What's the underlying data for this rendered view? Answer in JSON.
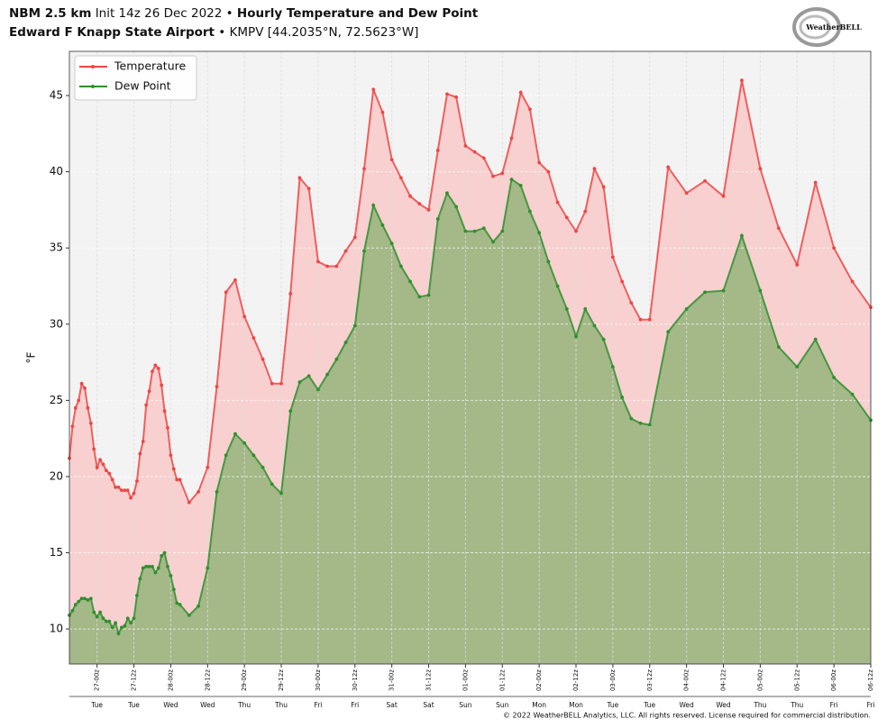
{
  "chart_data": {
    "type": "line",
    "title": {
      "model": "NBM 2.5 km",
      "init": "Init 14z 26 Dec 2022 •",
      "name": "Hourly Temperature and Dew Point"
    },
    "subtitle": {
      "station": "Edward F Knapp State Airport",
      "location": "• KMPV [44.2035°N, 72.5623°W]"
    },
    "y_label": "°F",
    "logo": "WeatherBELL",
    "copyright": "© 2022 WeatherBELL Analytics, LLC. All rights reserved. License required for commercial distribution.",
    "x": [
      15,
      16,
      17,
      18,
      19,
      20,
      21,
      22,
      23,
      24,
      25,
      26,
      27,
      28,
      29,
      30,
      31,
      32,
      33,
      34,
      35,
      36,
      37,
      38,
      39,
      40,
      41,
      42,
      43,
      44,
      45,
      46,
      47,
      48,
      49,
      50,
      51,
      54,
      57,
      60,
      63,
      66,
      69,
      72,
      75,
      78,
      81,
      84,
      87,
      90,
      93,
      96,
      99,
      102,
      105,
      108,
      111,
      114,
      117,
      120,
      123,
      126,
      129,
      132,
      135,
      138,
      141,
      144,
      147,
      150,
      153,
      156,
      159,
      162,
      165,
      168,
      171,
      174,
      177,
      180,
      183,
      186,
      189,
      192,
      195,
      198,
      201,
      204,
      210,
      216,
      222,
      228,
      234,
      240,
      246,
      252,
      258,
      264,
      270,
      276
    ],
    "series": [
      {
        "name": "Temperature",
        "color": "#ee4646",
        "fill": "#f8d0d0",
        "values": [
          21.2,
          23.3,
          24.5,
          25.0,
          26.1,
          25.8,
          24.5,
          23.5,
          21.8,
          20.6,
          21.1,
          20.8,
          20.4,
          20.2,
          19.8,
          19.3,
          19.3,
          19.1,
          19.1,
          19.1,
          18.6,
          18.9,
          19.7,
          21.5,
          22.3,
          24.7,
          25.6,
          26.9,
          27.3,
          27.1,
          26.0,
          24.3,
          23.2,
          21.4,
          20.5,
          19.8,
          19.8,
          18.3,
          19.0,
          20.6,
          25.9,
          32.1,
          32.9,
          30.5,
          29.1,
          27.7,
          26.1,
          26.1,
          32.0,
          39.6,
          38.9,
          34.1,
          33.8,
          33.8,
          34.8,
          35.7,
          40.2,
          45.4,
          43.9,
          40.8,
          39.6,
          38.4,
          37.9,
          37.5,
          41.4,
          45.1,
          44.9,
          41.7,
          41.3,
          40.9,
          39.7,
          39.9,
          42.2,
          45.2,
          44.1,
          40.6,
          40.0,
          38.0,
          37.0,
          36.1,
          37.4,
          40.2,
          39.0,
          34.4,
          32.8,
          31.4,
          30.3,
          30.3,
          40.3,
          38.6,
          39.4,
          38.4,
          46.0,
          40.2,
          36.3,
          33.9,
          39.3,
          35.0,
          32.8,
          31.1
        ]
      },
      {
        "name": "Dew Point",
        "color": "#2f8f2f",
        "fill": "#a4b888",
        "values": [
          10.9,
          11.2,
          11.6,
          11.8,
          12.0,
          12.0,
          11.9,
          12.0,
          11.1,
          10.8,
          11.1,
          10.7,
          10.5,
          10.5,
          10.1,
          10.4,
          9.7,
          10.1,
          10.2,
          10.7,
          10.4,
          10.7,
          12.2,
          13.3,
          14.0,
          14.1,
          14.1,
          14.1,
          13.7,
          14.0,
          14.8,
          15.0,
          14.1,
          13.5,
          12.6,
          11.7,
          11.6,
          10.9,
          11.5,
          14.0,
          19.0,
          21.4,
          22.8,
          22.2,
          21.4,
          20.6,
          19.5,
          18.9,
          24.3,
          26.2,
          26.6,
          25.7,
          26.7,
          27.7,
          28.8,
          29.9,
          34.8,
          37.8,
          36.5,
          35.3,
          33.8,
          32.8,
          31.8,
          31.9,
          36.9,
          38.6,
          37.7,
          36.1,
          36.1,
          36.3,
          35.4,
          36.1,
          39.5,
          39.1,
          37.4,
          36.0,
          34.1,
          32.5,
          31.0,
          29.2,
          31.0,
          29.9,
          29.0,
          27.2,
          25.2,
          23.8,
          23.5,
          23.4,
          29.5,
          31.0,
          32.1,
          32.2,
          35.8,
          32.2,
          28.5,
          27.2,
          29.0,
          26.5,
          25.4,
          23.7
        ]
      }
    ],
    "xlim": [
      15,
      276
    ],
    "xticks": [
      {
        "value": 24,
        "label": "27-00z"
      },
      {
        "value": 36,
        "label": "27-12z"
      },
      {
        "value": 48,
        "label": "28-00z"
      },
      {
        "value": 60,
        "label": "28-12z"
      },
      {
        "value": 72,
        "label": "29-00z"
      },
      {
        "value": 84,
        "label": "29-12z"
      },
      {
        "value": 96,
        "label": "30-00z"
      },
      {
        "value": 108,
        "label": "30-12z"
      },
      {
        "value": 120,
        "label": "31-00z"
      },
      {
        "value": 132,
        "label": "31-12z"
      },
      {
        "value": 144,
        "label": "01-00z"
      },
      {
        "value": 156,
        "label": "01-12z"
      },
      {
        "value": 168,
        "label": "02-00z"
      },
      {
        "value": 180,
        "label": "02-12z"
      },
      {
        "value": 192,
        "label": "03-00z"
      },
      {
        "value": 204,
        "label": "03-12z"
      },
      {
        "value": 216,
        "label": "04-00z"
      },
      {
        "value": 228,
        "label": "04-12z"
      },
      {
        "value": 240,
        "label": "05-00z"
      },
      {
        "value": 252,
        "label": "05-12z"
      },
      {
        "value": 264,
        "label": "06-00z"
      },
      {
        "value": 276,
        "label": "06-12z"
      }
    ],
    "x_day_labels": [
      "Tue",
      "Tue",
      "Wed",
      "Wed",
      "Thu",
      "Thu",
      "Fri",
      "Fri",
      "Sat",
      "Sat",
      "Sun",
      "Sun",
      "Mon",
      "Mon",
      "Tue",
      "Tue",
      "Wed",
      "Wed",
      "Thu",
      "Thu",
      "Fri",
      "Fri"
    ],
    "ylim": [
      7.7,
      47.9
    ],
    "yticks": [
      10,
      15,
      20,
      25,
      30,
      35,
      40,
      45
    ],
    "grid": true,
    "legend": "upper left"
  }
}
